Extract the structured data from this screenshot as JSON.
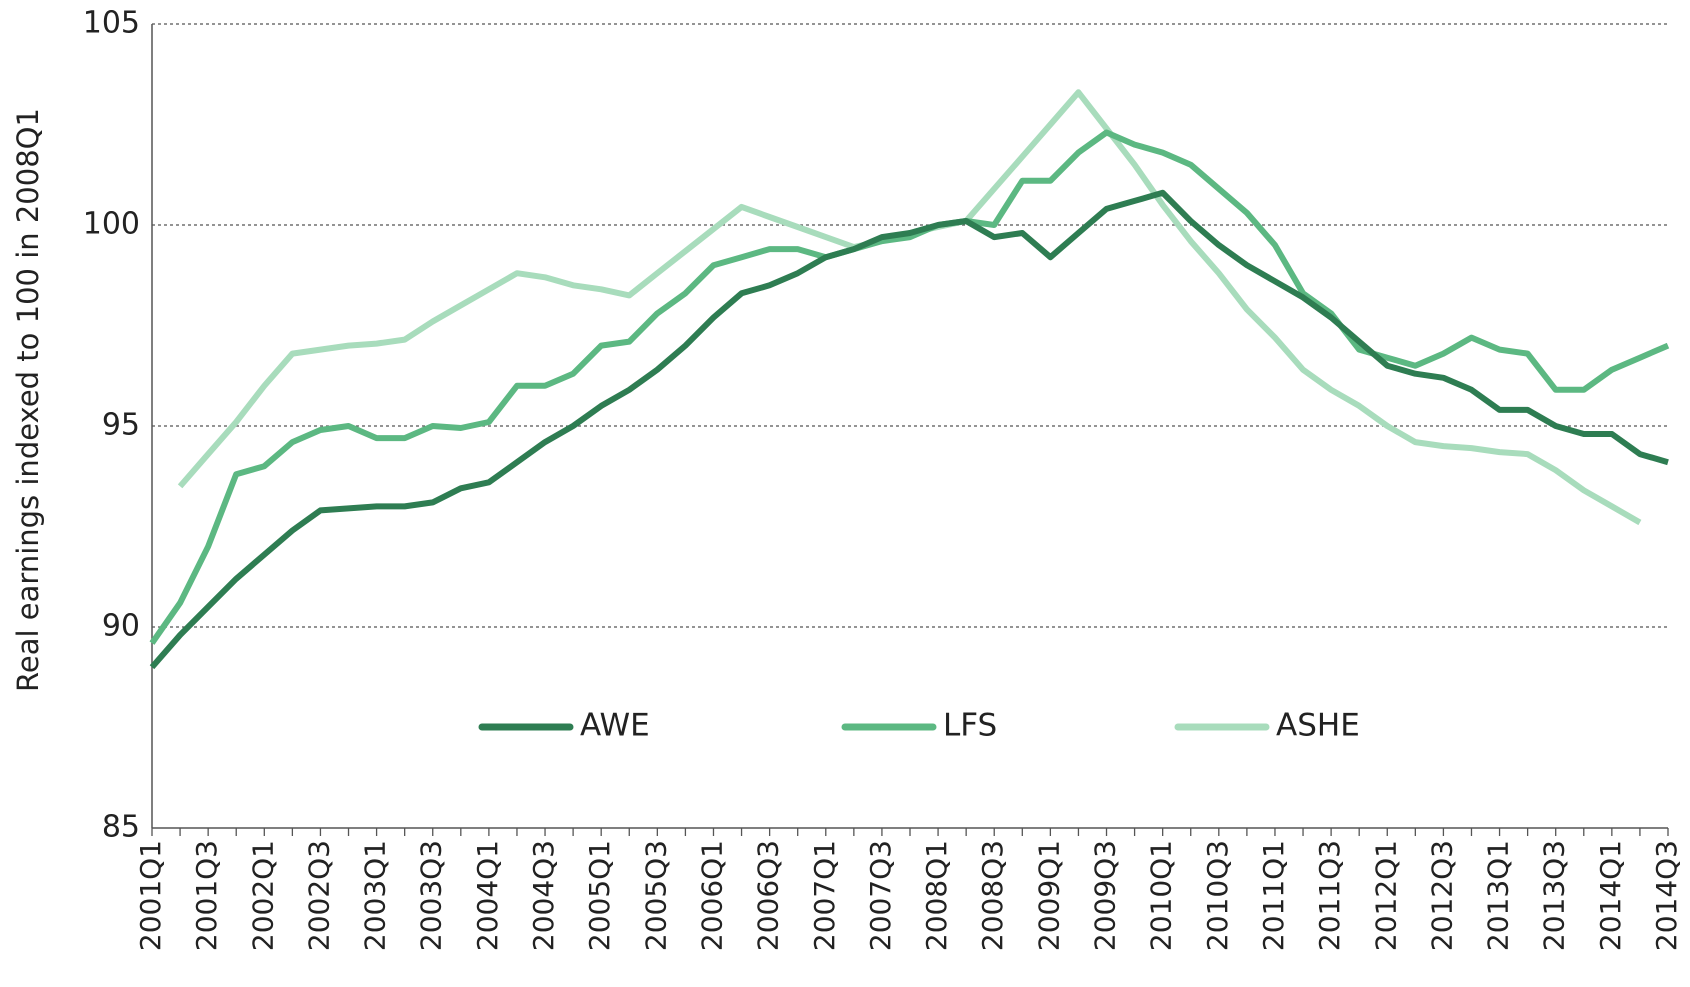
{
  "chart_data": {
    "type": "line",
    "y_label": "Real earnings indexed to 100 in 2008Q1",
    "categories": [
      "2001Q1",
      null,
      "2001Q3",
      null,
      "2002Q1",
      null,
      "2002Q3",
      null,
      "2003Q1",
      null,
      "2003Q3",
      null,
      "2004Q1",
      null,
      "2004Q3",
      null,
      "2005Q1",
      null,
      "2005Q3",
      null,
      "2006Q1",
      null,
      "2006Q3",
      null,
      "2007Q1",
      null,
      "2007Q3",
      null,
      "2008Q1",
      null,
      "2008Q3",
      null,
      "2009Q1",
      null,
      "2009Q3",
      null,
      "2010Q1",
      null,
      "2010Q3",
      null,
      "2011Q1",
      null,
      "2011Q3",
      null,
      "2012Q1",
      null,
      "2012Q3",
      null,
      "2013Q1",
      null,
      "2013Q3",
      null,
      "2014Q1",
      null,
      "2014Q3"
    ],
    "series": [
      {
        "name": "AWE",
        "color": "#2e7d52",
        "values": [
          89.0,
          89.8,
          90.5,
          91.2,
          91.8,
          92.4,
          92.9,
          92.95,
          93.0,
          93.0,
          93.1,
          93.45,
          93.6,
          94.1,
          94.6,
          95.0,
          95.5,
          95.9,
          96.4,
          97.0,
          97.7,
          98.3,
          98.5,
          98.8,
          99.2,
          99.4,
          99.7,
          99.8,
          100.0,
          100.1,
          99.7,
          99.8,
          99.2,
          99.8,
          100.4,
          100.6,
          100.8,
          100.1,
          99.5,
          99.0,
          98.6,
          98.2,
          97.7,
          97.1,
          96.5,
          96.3,
          96.2,
          95.9,
          95.4,
          95.4,
          95.0,
          94.8,
          94.8,
          94.3,
          94.1
        ]
      },
      {
        "name": "LFS",
        "color": "#5cb882",
        "values": [
          89.6,
          90.6,
          92.0,
          93.8,
          94.0,
          94.6,
          94.9,
          95.0,
          94.7,
          94.7,
          95.0,
          94.95,
          95.1,
          96.0,
          96.0,
          96.3,
          97.0,
          97.1,
          97.8,
          98.3,
          99.0,
          99.2,
          99.4,
          99.4,
          99.2,
          99.4,
          99.6,
          99.7,
          100.0,
          100.1,
          100.0,
          101.1,
          101.1,
          101.8,
          102.3,
          102.0,
          101.8,
          101.5,
          100.9,
          100.3,
          99.5,
          98.3,
          97.8,
          96.9,
          96.7,
          96.5,
          96.8,
          97.2,
          96.9,
          96.8,
          95.9,
          95.9,
          96.4,
          96.7,
          97.0
        ]
      },
      {
        "name": "ASHE",
        "color": "#a8dcbc",
        "values": [
          null,
          93.5,
          94.3,
          95.1,
          96.0,
          96.8,
          96.9,
          97.0,
          97.05,
          97.15,
          97.6,
          98.0,
          98.4,
          98.8,
          98.7,
          98.5,
          98.4,
          98.25,
          98.8,
          99.35,
          99.9,
          100.45,
          100.2,
          99.95,
          99.7,
          99.45,
          99.6,
          99.8,
          99.95,
          100.1,
          100.9,
          101.7,
          102.5,
          103.3,
          102.4,
          101.5,
          100.5,
          99.6,
          98.8,
          97.9,
          97.2,
          96.4,
          95.9,
          95.5,
          95.0,
          94.6,
          94.5,
          94.45,
          94.35,
          94.3,
          93.9,
          93.4,
          93.0,
          92.6,
          null
        ]
      }
    ],
    "ylim": [
      85,
      105
    ],
    "yticks": [
      85,
      90,
      95,
      100,
      105
    ],
    "grid": true
  }
}
